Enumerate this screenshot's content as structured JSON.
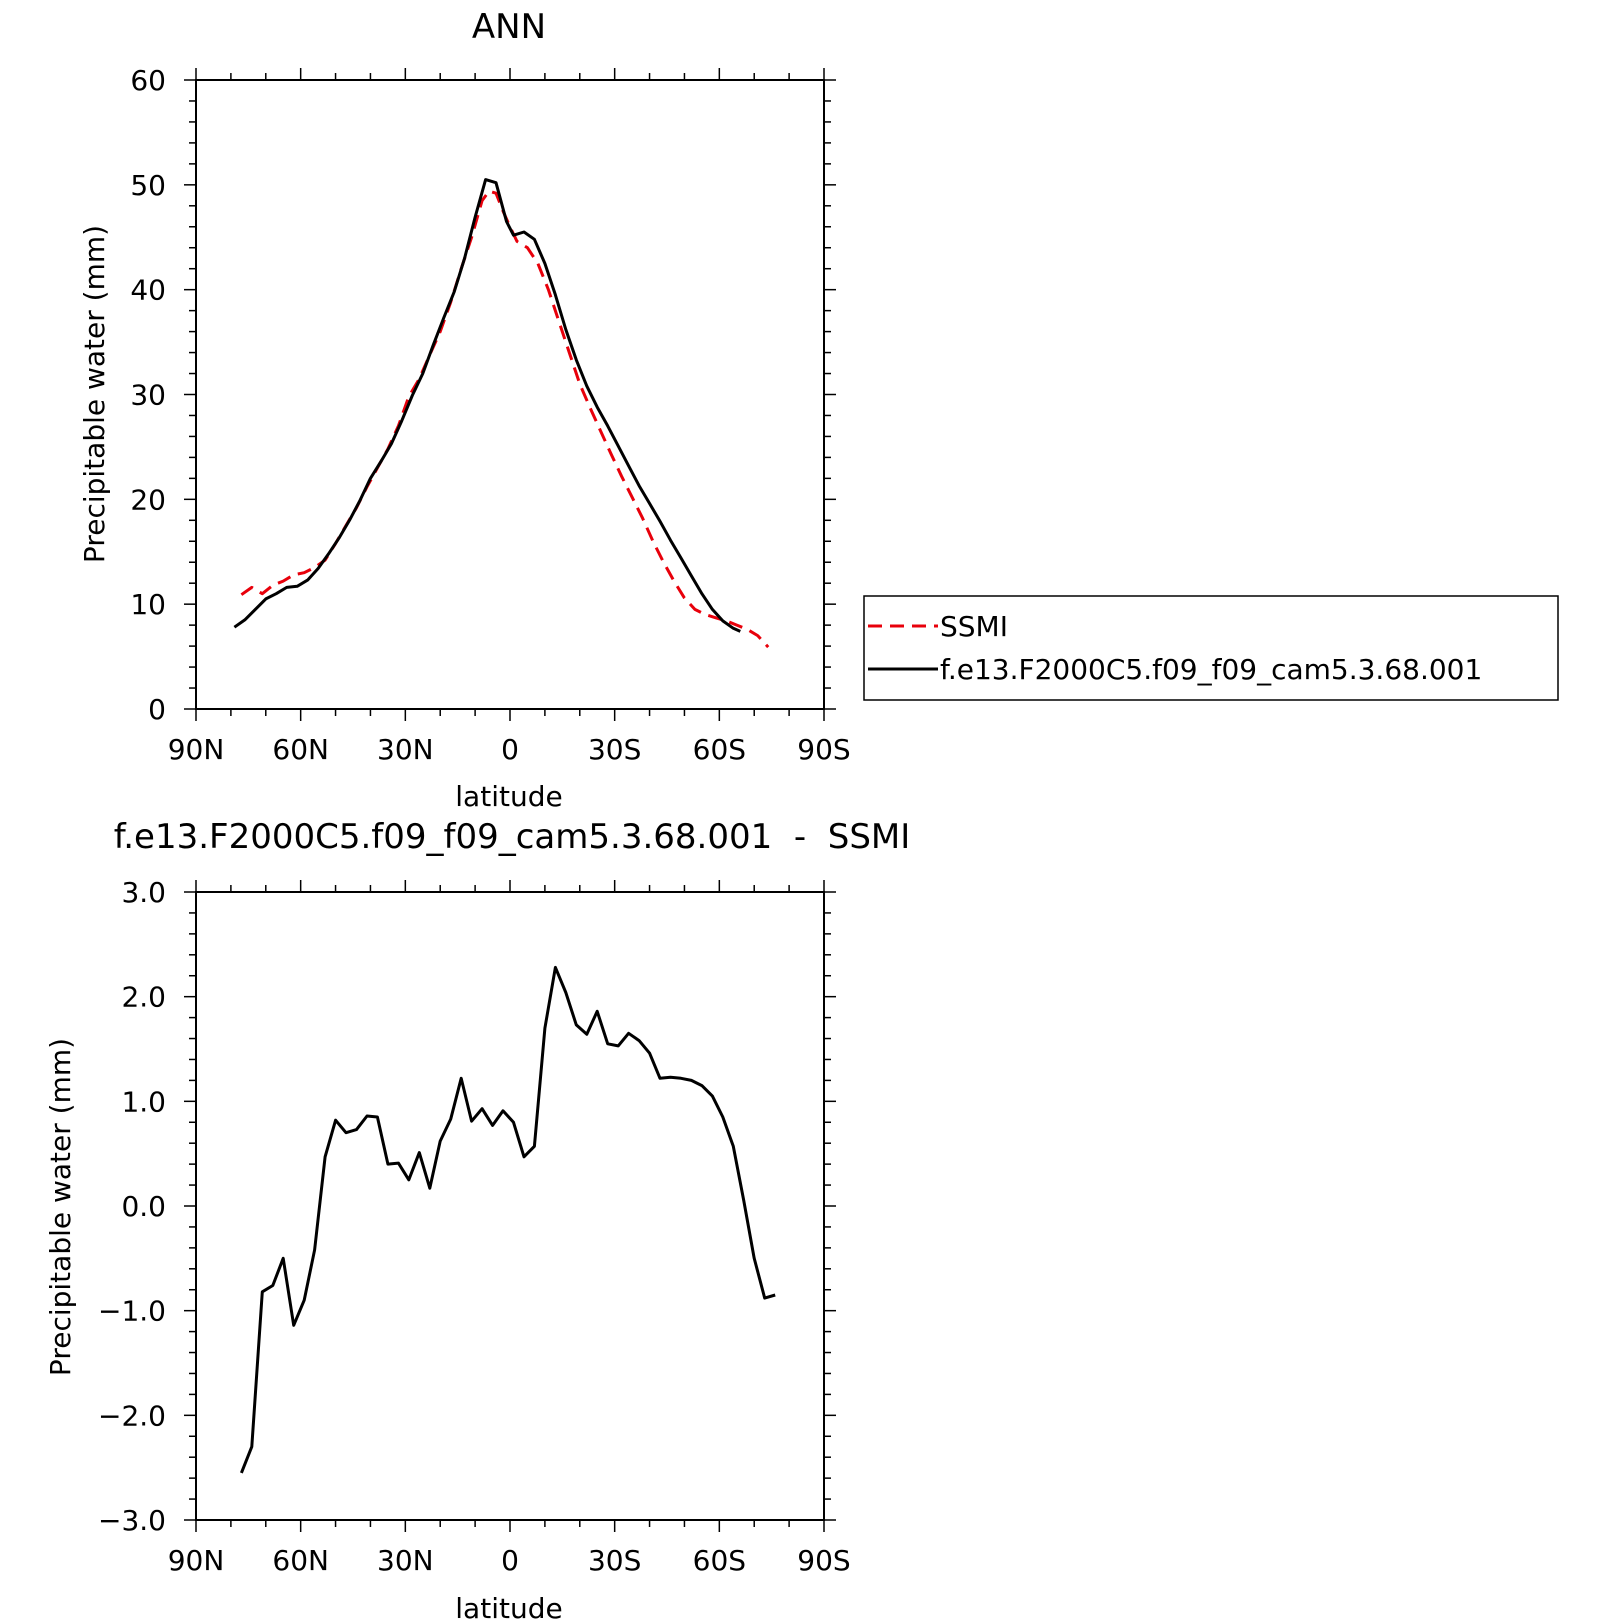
{
  "chart_data": [
    {
      "type": "line",
      "title": "ANN",
      "xlabel": "latitude",
      "ylabel": "Precipitable water (mm)",
      "xlim": [
        90,
        -90
      ],
      "ylim": [
        0,
        60
      ],
      "xticks": [
        90,
        60,
        30,
        0,
        -30,
        -60,
        -90
      ],
      "xtick_labels": [
        "90N",
        "60N",
        "30N",
        "0",
        "30S",
        "60S",
        "90S"
      ],
      "yticks": [
        0,
        10,
        20,
        30,
        40,
        50,
        60
      ],
      "ytick_labels": [
        "0",
        "10",
        "20",
        "30",
        "40",
        "50",
        "60"
      ],
      "grid": false,
      "legend_position": "right",
      "series": [
        {
          "name": "SSMI",
          "color": "#e8000b",
          "dash": "dashed",
          "points": [
            [
              77,
              10.9
            ],
            [
              74,
              11.6
            ],
            [
              71,
              11.0
            ],
            [
              68,
              11.8
            ],
            [
              65,
              12.2
            ],
            [
              62,
              12.8
            ],
            [
              59,
              13.0
            ],
            [
              56,
              13.5
            ],
            [
              53,
              14.2
            ],
            [
              50,
              15.8
            ],
            [
              47,
              17.5
            ],
            [
              44,
              19.2
            ],
            [
              41,
              21.2
            ],
            [
              38,
              23.0
            ],
            [
              35,
              24.8
            ],
            [
              32,
              27.0
            ],
            [
              29,
              29.8
            ],
            [
              26,
              31.5
            ],
            [
              23,
              33.8
            ],
            [
              20,
              36.0
            ],
            [
              17,
              38.8
            ],
            [
              14,
              42.0
            ],
            [
              11,
              45.0
            ],
            [
              8,
              48.5
            ],
            [
              6,
              49.4
            ],
            [
              4,
              49.2
            ],
            [
              2,
              47.5
            ],
            [
              0,
              46.0
            ],
            [
              -2,
              44.6
            ],
            [
              -5,
              44.0
            ],
            [
              -8,
              42.5
            ],
            [
              -11,
              40.0
            ],
            [
              -14,
              37.0
            ],
            [
              -17,
              34.0
            ],
            [
              -20,
              31.0
            ],
            [
              -23,
              28.7
            ],
            [
              -26,
              26.5
            ],
            [
              -29,
              24.3
            ],
            [
              -32,
              22.2
            ],
            [
              -35,
              20.2
            ],
            [
              -38,
              18.2
            ],
            [
              -41,
              16.0
            ],
            [
              -44,
              14.0
            ],
            [
              -47,
              12.2
            ],
            [
              -50,
              10.6
            ],
            [
              -53,
              9.5
            ],
            [
              -56,
              9.0
            ],
            [
              -59,
              8.7
            ],
            [
              -62,
              8.4
            ],
            [
              -65,
              8.0
            ],
            [
              -68,
              7.6
            ],
            [
              -71,
              7.0
            ],
            [
              -74,
              5.9
            ]
          ]
        },
        {
          "name": "f.e13.F2000C5.f09_f09_cam5.3.68.001",
          "color": "#000000",
          "dash": "solid",
          "points": [
            [
              79,
              7.8
            ],
            [
              76,
              8.5
            ],
            [
              73,
              9.5
            ],
            [
              70,
              10.5
            ],
            [
              67,
              11.0
            ],
            [
              64,
              11.6
            ],
            [
              61,
              11.7
            ],
            [
              58,
              12.3
            ],
            [
              55,
              13.4
            ],
            [
              52,
              14.8
            ],
            [
              49,
              16.3
            ],
            [
              46,
              18.0
            ],
            [
              43,
              19.9
            ],
            [
              40,
              22.0
            ],
            [
              37,
              23.6
            ],
            [
              34,
              25.3
            ],
            [
              31,
              27.5
            ],
            [
              28,
              29.9
            ],
            [
              25,
              32.0
            ],
            [
              22,
              34.7
            ],
            [
              19,
              37.3
            ],
            [
              16,
              39.8
            ],
            [
              13,
              43.0
            ],
            [
              10,
              46.9
            ],
            [
              7,
              50.5
            ],
            [
              4,
              50.2
            ],
            [
              1,
              46.5
            ],
            [
              -1,
              45.2
            ],
            [
              -4,
              45.5
            ],
            [
              -7,
              44.8
            ],
            [
              -10,
              42.5
            ],
            [
              -13,
              39.5
            ],
            [
              -16,
              36.2
            ],
            [
              -19,
              33.3
            ],
            [
              -22,
              30.8
            ],
            [
              -25,
              28.8
            ],
            [
              -28,
              27.0
            ],
            [
              -31,
              25.1
            ],
            [
              -34,
              23.2
            ],
            [
              -37,
              21.3
            ],
            [
              -40,
              19.6
            ],
            [
              -43,
              17.9
            ],
            [
              -46,
              16.1
            ],
            [
              -49,
              14.4
            ],
            [
              -52,
              12.7
            ],
            [
              -55,
              11.0
            ],
            [
              -58,
              9.5
            ],
            [
              -61,
              8.4
            ],
            [
              -64,
              7.7
            ],
            [
              -66,
              7.4
            ]
          ]
        }
      ]
    },
    {
      "type": "line",
      "title": "f.e13.F2000C5.f09_f09_cam5.3.68.001  -  SSMI",
      "xlabel": "latitude",
      "ylabel": "Precipitable water (mm)",
      "xlim": [
        90,
        -90
      ],
      "ylim": [
        -3,
        3
      ],
      "xticks": [
        90,
        60,
        30,
        0,
        -30,
        -60,
        -90
      ],
      "xtick_labels": [
        "90N",
        "60N",
        "30N",
        "0",
        "30S",
        "60S",
        "90S"
      ],
      "yticks": [
        3,
        2,
        1,
        0,
        -1,
        -2,
        -3
      ],
      "ytick_labels": [
        "3.0",
        "2.0",
        "1.0",
        "0.0",
        "−1.0",
        "−2.0",
        "−3.0"
      ],
      "grid": false,
      "series": [
        {
          "color": "#000000",
          "dash": "solid",
          "points": [
            [
              77,
              -2.55
            ],
            [
              74,
              -2.3
            ],
            [
              71,
              -0.82
            ],
            [
              68,
              -0.76
            ],
            [
              65,
              -0.5
            ],
            [
              62,
              -1.14
            ],
            [
              59,
              -0.9
            ],
            [
              56,
              -0.42
            ],
            [
              53,
              0.47
            ],
            [
              50,
              0.82
            ],
            [
              47,
              0.7
            ],
            [
              44,
              0.73
            ],
            [
              41,
              0.86
            ],
            [
              38,
              0.85
            ],
            [
              35,
              0.4
            ],
            [
              32,
              0.41
            ],
            [
              29,
              0.25
            ],
            [
              26,
              0.51
            ],
            [
              23,
              0.17
            ],
            [
              20,
              0.62
            ],
            [
              17,
              0.83
            ],
            [
              14,
              1.22
            ],
            [
              11,
              0.81
            ],
            [
              8,
              0.93
            ],
            [
              5,
              0.77
            ],
            [
              2,
              0.91
            ],
            [
              -1,
              0.8
            ],
            [
              -4,
              0.47
            ],
            [
              -7,
              0.57
            ],
            [
              -10,
              1.7
            ],
            [
              -13,
              2.28
            ],
            [
              -16,
              2.04
            ],
            [
              -19,
              1.73
            ],
            [
              -22,
              1.64
            ],
            [
              -25,
              1.86
            ],
            [
              -28,
              1.55
            ],
            [
              -31,
              1.53
            ],
            [
              -34,
              1.65
            ],
            [
              -37,
              1.58
            ],
            [
              -40,
              1.46
            ],
            [
              -43,
              1.22
            ],
            [
              -46,
              1.23
            ],
            [
              -49,
              1.22
            ],
            [
              -52,
              1.2
            ],
            [
              -55,
              1.15
            ],
            [
              -58,
              1.05
            ],
            [
              -61,
              0.85
            ],
            [
              -64,
              0.57
            ],
            [
              -67,
              0.05
            ],
            [
              -70,
              -0.5
            ],
            [
              -73,
              -0.88
            ],
            [
              -76,
              -0.85
            ]
          ]
        }
      ]
    }
  ]
}
